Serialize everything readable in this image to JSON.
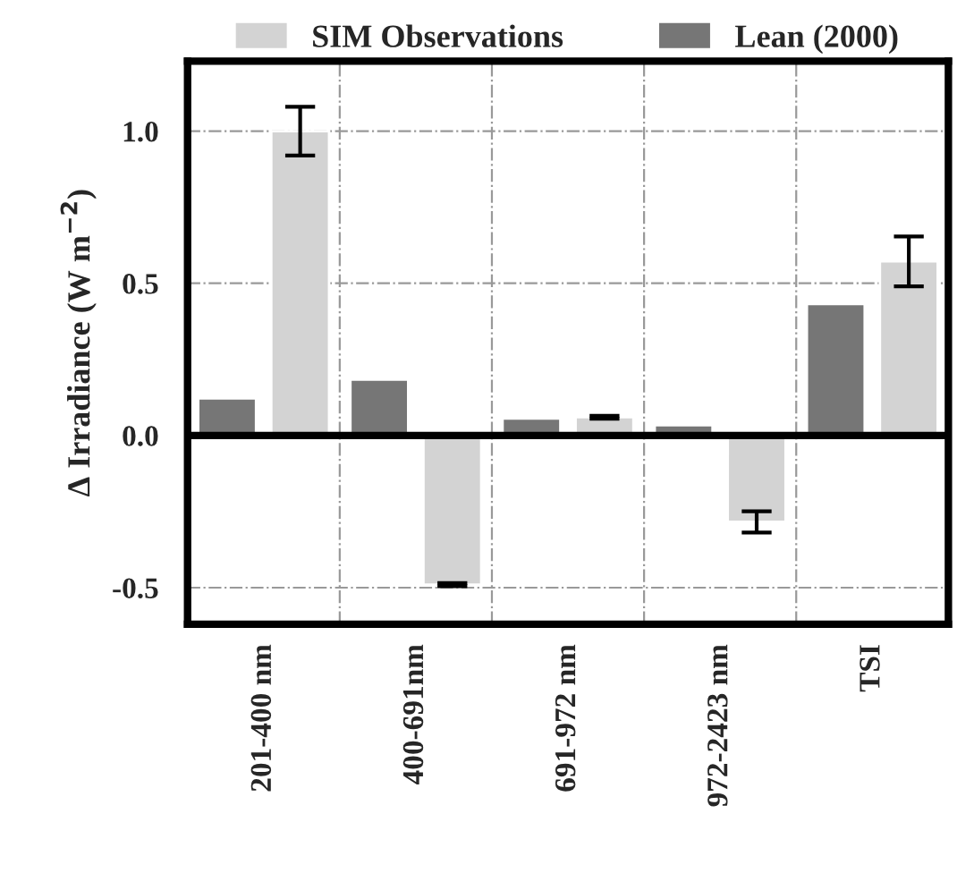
{
  "chart_data": {
    "type": "bar",
    "ylabel": "Δ Irradiance (W m$^{−2}$)",
    "categories": [
      "201-400 nm",
      "400-691nm",
      "691-972 nm",
      "972-2423 nm",
      "TSI"
    ],
    "series": [
      {
        "name": "Lean (2000)",
        "color": "#767676",
        "values": [
          0.122,
          0.184,
          0.056,
          0.034,
          0.432
        ]
      },
      {
        "name": "SIM Observations",
        "color": "#d3d3d3",
        "values": [
          1.0,
          -0.49,
          0.06,
          -0.284,
          0.572
        ],
        "errors": [
          0.08,
          0.005,
          0.005,
          0.035,
          0.082
        ]
      }
    ],
    "ylim": [
      -0.62,
      1.23
    ],
    "yticks": [
      {
        "value": -0.5,
        "label": "-0.5"
      },
      {
        "value": 0,
        "label": "0.0"
      },
      {
        "value": 0.5,
        "label": "0.5"
      },
      {
        "value": 1.0,
        "label": "1.0"
      }
    ],
    "ref_lines": [
      {
        "axis": "y",
        "value": 0,
        "color": "#000000"
      }
    ],
    "grid": true,
    "legend": "top"
  }
}
